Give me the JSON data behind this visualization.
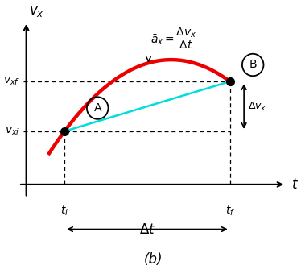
{
  "title": "(b)",
  "xlabel": "t",
  "ylabel": "v_x",
  "t_i": 1.5,
  "t_f": 8.0,
  "v_xi": 0.32,
  "v_xf": 0.62,
  "v_peak": 0.75,
  "t_peak": 5.5,
  "curve_color": "#ee0000",
  "curve_linewidth": 3.2,
  "cyan_line_color": "#00dddd",
  "cyan_linewidth": 1.8,
  "dot_color": "#000000",
  "dot_size": 7,
  "background_color": "#ffffff",
  "formula_text": "$\\bar{a}_x = \\dfrac{\\Delta v_x}{\\Delta t}$",
  "label_vxi": "$v_{xi}$",
  "label_vxf": "$v_{xf}$",
  "label_ti": "$t_i$",
  "label_tf": "$t_f$",
  "label_Delta_t": "$\\Delta t$",
  "label_Delta_vx": "$\\Delta v_x$",
  "xlim": [
    -0.5,
    10.5
  ],
  "ylim": [
    -0.55,
    1.05
  ]
}
